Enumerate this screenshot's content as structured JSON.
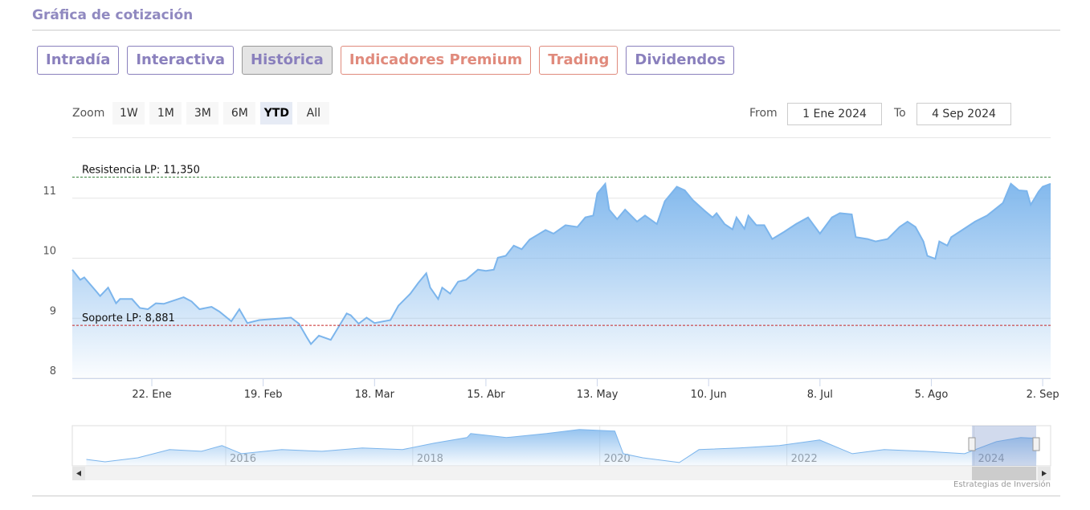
{
  "header": {
    "title": "Gráfica de cotización"
  },
  "tabs": [
    {
      "label": "Intradía",
      "color": "#8a80bd"
    },
    {
      "label": "Interactiva",
      "color": "#8a80bd"
    },
    {
      "label": "Histórica",
      "color": "#8a80bd",
      "active": true
    },
    {
      "label": "Indicadores Premium",
      "color": "#e08a7c"
    },
    {
      "label": "Trading",
      "color": "#e08a7c"
    },
    {
      "label": "Dividendos",
      "color": "#8a80bd"
    }
  ],
  "zoom": {
    "label": "Zoom",
    "buttons": [
      "1W",
      "1M",
      "3M",
      "6M",
      "YTD",
      "All"
    ],
    "selected": "YTD"
  },
  "range": {
    "from_label": "From",
    "from": "1 Ene 2024",
    "to_label": "To",
    "to": "4 Sep 2024"
  },
  "chart_data": {
    "type": "area",
    "color": "#7cb5ec",
    "x": [
      "2024-01-02",
      "2024-01-04",
      "2024-01-05",
      "2024-01-08",
      "2024-01-09",
      "2024-01-11",
      "2024-01-13",
      "2024-01-14",
      "2024-01-17",
      "2024-01-19",
      "2024-01-21",
      "2024-01-23",
      "2024-01-25",
      "2024-01-30",
      "2024-02-01",
      "2024-02-03",
      "2024-02-06",
      "2024-02-08",
      "2024-02-11",
      "2024-02-13",
      "2024-02-15",
      "2024-02-18",
      "2024-02-22",
      "2024-02-26",
      "2024-02-28",
      "2024-03-01",
      "2024-03-02",
      "2024-03-04",
      "2024-03-07",
      "2024-03-08",
      "2024-03-11",
      "2024-03-12",
      "2024-03-14",
      "2024-03-16",
      "2024-03-18",
      "2024-03-22",
      "2024-03-24",
      "2024-03-27",
      "2024-03-29",
      "2024-03-31",
      "2024-04-01",
      "2024-04-03",
      "2024-04-04",
      "2024-04-06",
      "2024-04-08",
      "2024-04-10",
      "2024-04-13",
      "2024-04-15",
      "2024-04-17",
      "2024-04-18",
      "2024-04-20",
      "2024-04-22",
      "2024-04-24",
      "2024-04-26",
      "2024-04-28",
      "2024-04-30",
      "2024-05-02",
      "2024-05-05",
      "2024-05-08",
      "2024-05-10",
      "2024-05-12",
      "2024-05-13",
      "2024-05-15",
      "2024-05-16",
      "2024-05-18",
      "2024-05-20",
      "2024-05-23",
      "2024-05-25",
      "2024-05-28",
      "2024-05-30",
      "2024-06-02",
      "2024-06-04",
      "2024-06-06",
      "2024-06-09",
      "2024-06-11",
      "2024-06-12",
      "2024-06-14",
      "2024-06-16",
      "2024-06-17",
      "2024-06-19",
      "2024-06-20",
      "2024-06-22",
      "2024-06-24",
      "2024-06-26",
      "2024-06-29",
      "2024-07-02",
      "2024-07-05",
      "2024-07-08",
      "2024-07-11",
      "2024-07-13",
      "2024-07-16",
      "2024-07-17",
      "2024-07-20",
      "2024-07-22",
      "2024-07-25",
      "2024-07-28",
      "2024-07-30",
      "2024-08-01",
      "2024-08-03",
      "2024-08-04",
      "2024-08-06",
      "2024-08-07",
      "2024-08-09",
      "2024-08-10",
      "2024-08-13",
      "2024-08-16",
      "2024-08-19",
      "2024-08-23",
      "2024-08-25",
      "2024-08-27",
      "2024-08-29",
      "2024-08-30",
      "2024-09-01",
      "2024-09-02",
      "2024-09-04"
    ],
    "values": [
      9.81,
      9.64,
      9.68,
      9.45,
      9.37,
      9.51,
      9.25,
      9.32,
      9.32,
      9.17,
      9.15,
      9.25,
      9.24,
      9.35,
      9.28,
      9.15,
      9.19,
      9.11,
      8.95,
      9.15,
      8.92,
      8.97,
      8.99,
      9.01,
      8.91,
      8.68,
      8.57,
      8.71,
      8.64,
      8.75,
      9.08,
      9.05,
      8.91,
      9.01,
      8.92,
      8.97,
      9.21,
      9.41,
      9.59,
      9.75,
      9.51,
      9.32,
      9.51,
      9.41,
      9.61,
      9.64,
      9.81,
      9.79,
      9.81,
      10.01,
      10.04,
      10.21,
      10.15,
      10.31,
      10.39,
      10.47,
      10.41,
      10.55,
      10.52,
      10.68,
      10.71,
      11.08,
      11.24,
      10.81,
      10.65,
      10.81,
      10.61,
      10.71,
      10.57,
      10.95,
      11.19,
      11.13,
      10.97,
      10.79,
      10.68,
      10.75,
      10.57,
      10.48,
      10.68,
      10.49,
      10.71,
      10.55,
      10.55,
      10.32,
      10.44,
      10.57,
      10.68,
      10.41,
      10.68,
      10.75,
      10.73,
      10.35,
      10.32,
      10.28,
      10.32,
      10.52,
      10.61,
      10.52,
      10.28,
      10.04,
      9.99,
      10.28,
      10.21,
      10.35,
      10.48,
      10.61,
      10.71,
      10.92,
      11.24,
      11.13,
      11.12,
      10.89,
      11.11,
      11.19,
      11.24
    ],
    "xlim": [
      "2024-01-02",
      "2024-09-04"
    ],
    "xticks": [
      {
        "value": "2024-01-22",
        "label": "22. Ene"
      },
      {
        "value": "2024-02-19",
        "label": "19. Feb"
      },
      {
        "value": "2024-03-18",
        "label": "18. Mar"
      },
      {
        "value": "2024-04-15",
        "label": "15. Abr"
      },
      {
        "value": "2024-05-13",
        "label": "13. May"
      },
      {
        "value": "2024-06-10",
        "label": "10. Jun"
      },
      {
        "value": "2024-07-08",
        "label": "8. Jul"
      },
      {
        "value": "2024-08-05",
        "label": "5. Ago"
      },
      {
        "value": "2024-09-02",
        "label": "2. Sep"
      }
    ],
    "ylim": [
      8,
      12
    ],
    "yticks": [
      8,
      9,
      10,
      11
    ],
    "grid": true,
    "plot_lines": [
      {
        "label": "Resistencia LP: 11,350",
        "value": 11.35,
        "color": "#2e7d32"
      },
      {
        "label": "Soporte LP: 8,881",
        "value": 8.881,
        "color": "#c62828"
      }
    ],
    "navigator": {
      "x": [
        2014.51,
        2014.71,
        2015.06,
        2015.4,
        2015.74,
        2015.96,
        2016.17,
        2016.6,
        2017.03,
        2017.46,
        2017.89,
        2018.23,
        2018.58,
        2018.62,
        2019.0,
        2019.43,
        2019.78,
        2020.16,
        2020.25,
        2020.46,
        2020.85,
        2021.06,
        2021.49,
        2021.92,
        2022.35,
        2022.7,
        2023.04,
        2023.47,
        2023.9,
        2024.24,
        2024.5,
        2024.67
      ],
      "values": [
        8.65,
        8.37,
        8.84,
        9.79,
        9.6,
        10.26,
        9.32,
        9.79,
        9.6,
        9.98,
        9.79,
        10.54,
        11.2,
        11.67,
        11.2,
        11.67,
        12.15,
        11.96,
        9.32,
        8.84,
        8.28,
        9.79,
        9.98,
        10.26,
        10.92,
        9.32,
        9.79,
        9.6,
        9.32,
        10.73,
        11.2,
        11.11
      ],
      "xlim": [
        2014.36,
        2024.82
      ],
      "xticks": [
        2016,
        2018,
        2020,
        2022,
        2024
      ],
      "ylim": [
        7.9,
        12.4
      ]
    }
  },
  "credits": "Estrategias de Inversión"
}
